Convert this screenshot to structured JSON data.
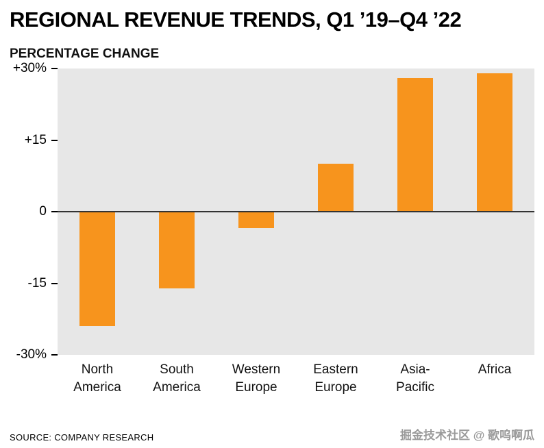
{
  "header": {
    "title": "REGIONAL REVENUE TRENDS, Q1 ’19–Q4 ’22",
    "subtitle": "PERCENTAGE CHANGE"
  },
  "footer": {
    "source": "SOURCE: COMPANY RESEARCH",
    "watermark": "掘金技术社区 @ 歌呜啊瓜"
  },
  "chart_data": {
    "type": "bar",
    "title": "REGIONAL REVENUE TRENDS, Q1 '19–Q4 '22",
    "subtitle": "PERCENTAGE CHANGE",
    "categories": [
      "North\nAmerica",
      "South\nAmerica",
      "Western\nEurope",
      "Eastern\nEurope",
      "Asia-\nPacific",
      "Africa"
    ],
    "values": [
      -24,
      -16,
      -3.5,
      10,
      28,
      29
    ],
    "ylim": [
      -30,
      30
    ],
    "yticks": [
      {
        "value": 30,
        "label": "+30%"
      },
      {
        "value": 15,
        "label": "+15"
      },
      {
        "value": 0,
        "label": "0"
      },
      {
        "value": -15,
        "label": "-15"
      },
      {
        "value": -30,
        "label": "-30%"
      }
    ],
    "grid": false,
    "legend": "none",
    "xlabel": "",
    "ylabel": "PERCENTAGE CHANGE",
    "bar_color": "#F7941D",
    "plot_bg": "#E7E7E7",
    "zero_line_color": "#333333"
  }
}
